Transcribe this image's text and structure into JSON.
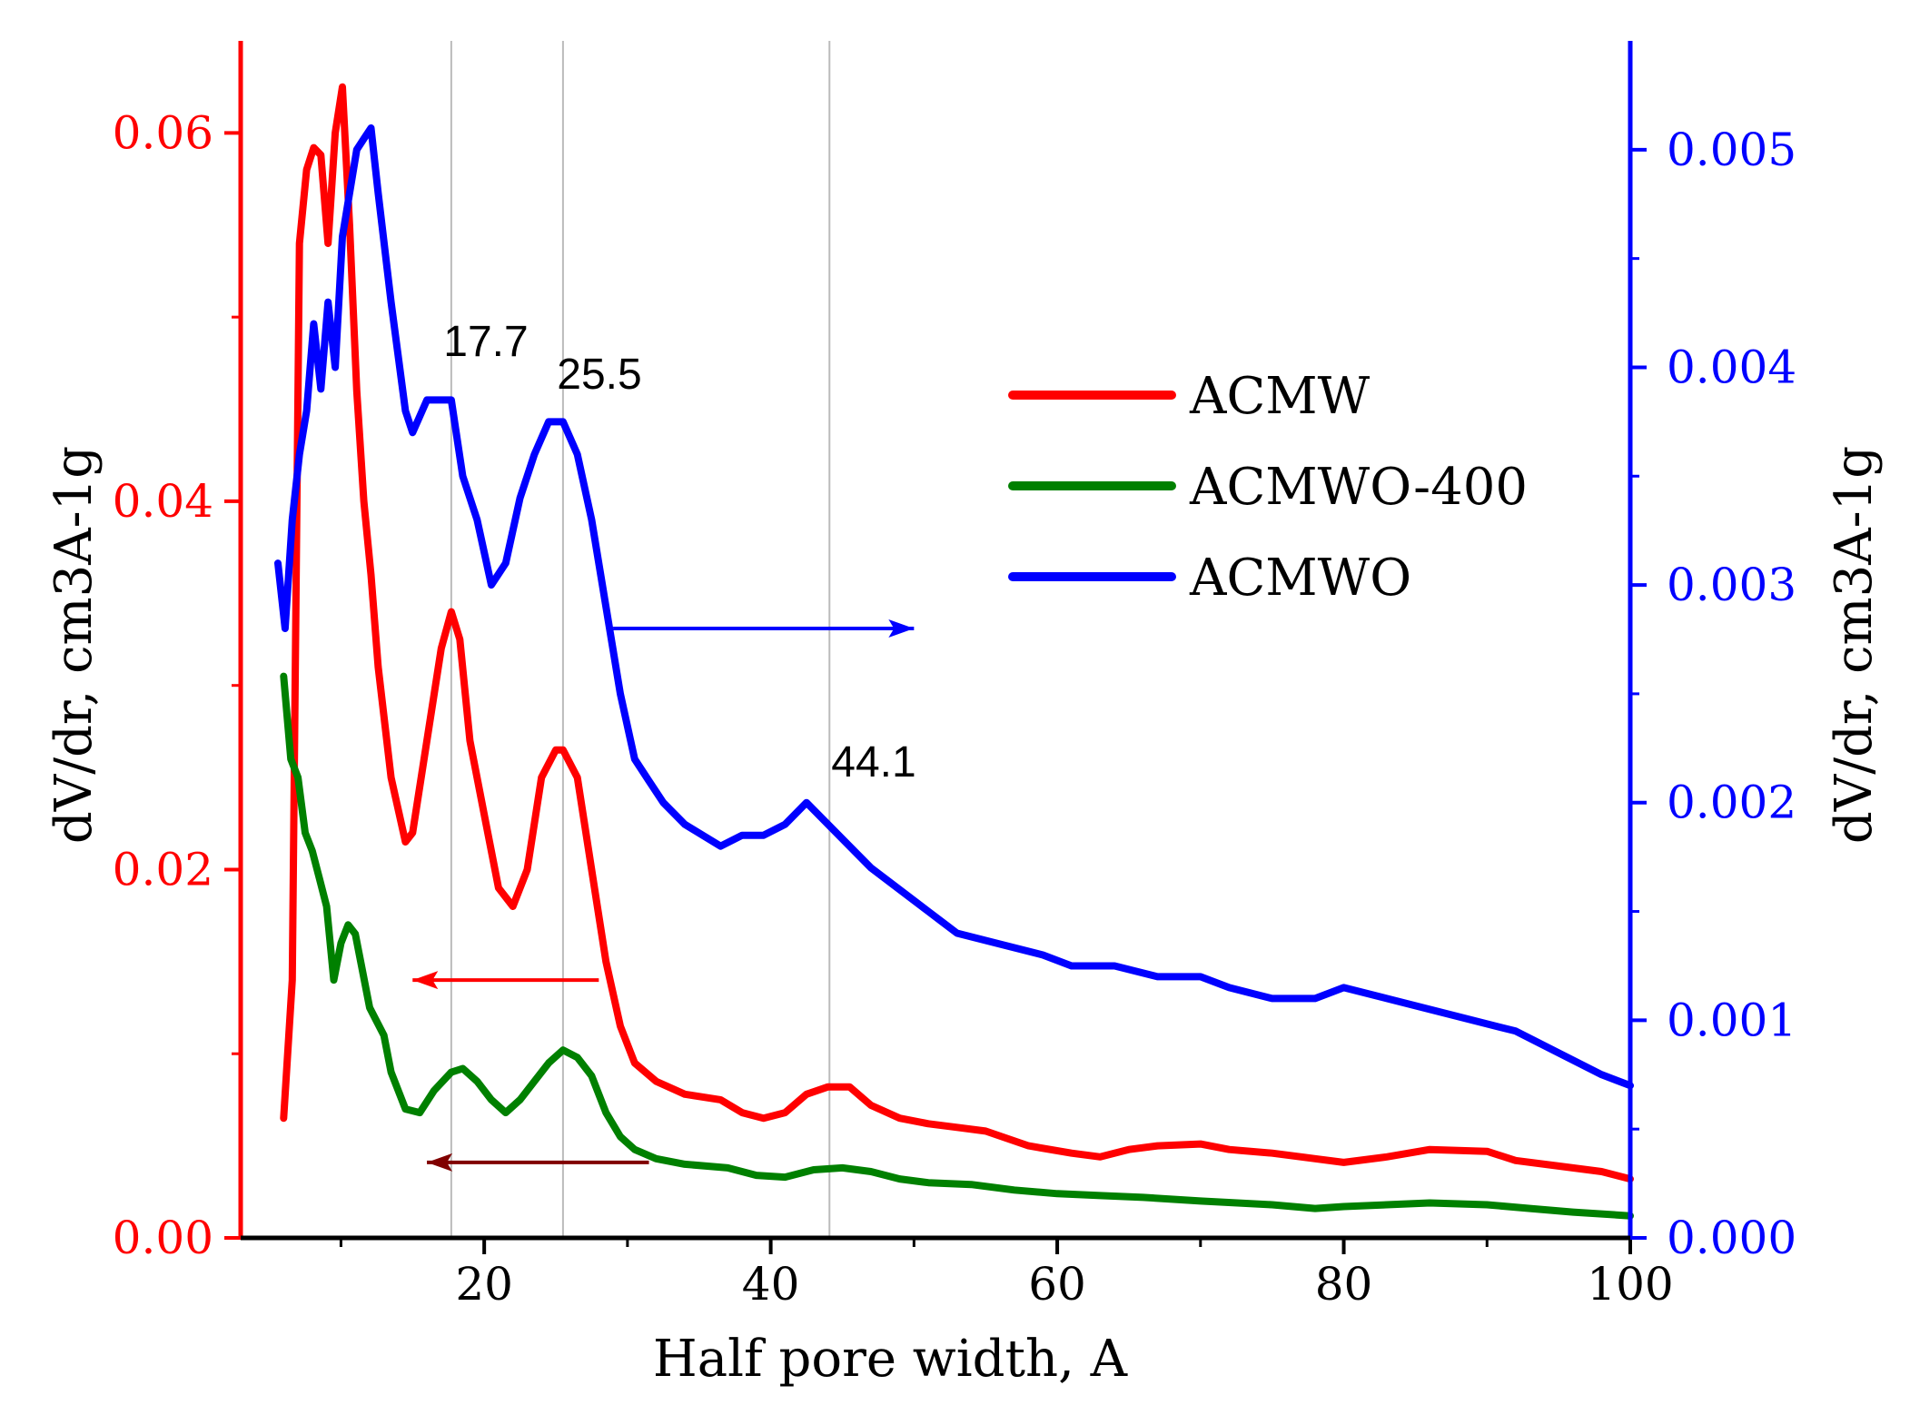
{
  "chart_data": {
    "type": "line",
    "title": "",
    "xlabel": "Half pore width, A",
    "ylabel_left": "dV/dr, cm3A-1g",
    "ylabel_right": "dV/dr, cm3A-1g",
    "xlim": [
      3,
      100
    ],
    "ylim_left": [
      0,
      0.065
    ],
    "ylim_right": [
      0,
      0.0055
    ],
    "x_ticks": [
      "20",
      "40",
      "60",
      "80",
      "100"
    ],
    "y_left_ticks": [
      "0.00",
      "0.02",
      "0.04",
      "0.06"
    ],
    "y_right_ticks": [
      "0.000",
      "0.001",
      "0.002",
      "0.003",
      "0.004",
      "0.005"
    ],
    "vertical_lines": [
      17.7,
      25.5,
      44.1
    ],
    "annotations": [
      "17.7",
      "25.5",
      "44.1"
    ],
    "legend": [
      "ACMW",
      "ACMWO-400",
      "ACMWO"
    ],
    "legend_position": "top-right",
    "colors": {
      "ACMW": "#ff0000",
      "ACMWO-400": "#008000",
      "ACMWO": "#0000ff",
      "left_axis": "#ff0000",
      "right_axis": "#0000ff",
      "arrow_dark": "#800000"
    },
    "series": [
      {
        "name": "ACMW",
        "axis": "left",
        "x": [
          6.0,
          6.6,
          7.1,
          7.6,
          8.1,
          8.6,
          9.1,
          9.6,
          10.1,
          10.6,
          11.1,
          11.6,
          12.1,
          12.6,
          13.5,
          14.5,
          15.0,
          15.8,
          17.0,
          17.7,
          18.3,
          19.0,
          20.0,
          21.0,
          22.0,
          23.0,
          24.0,
          25.0,
          25.5,
          26.5,
          27.5,
          28.5,
          29.5,
          30.5,
          32.0,
          34.0,
          36.5,
          38.0,
          39.5,
          41.0,
          42.5,
          44.0,
          45.5,
          47.0,
          49.0,
          51.0,
          53.0,
          55.0,
          58.0,
          61.0,
          63.0,
          65.0,
          67.0,
          70.0,
          72.0,
          75.0,
          78.0,
          80.0,
          83.0,
          86.0,
          90.0,
          92.0,
          95.0,
          98.0,
          100.0
        ],
        "values": [
          0.0065,
          0.014,
          0.054,
          0.058,
          0.0592,
          0.0588,
          0.054,
          0.06,
          0.0625,
          0.055,
          0.046,
          0.04,
          0.036,
          0.031,
          0.025,
          0.0215,
          0.022,
          0.026,
          0.032,
          0.034,
          0.0325,
          0.027,
          0.023,
          0.019,
          0.018,
          0.02,
          0.025,
          0.0265,
          0.0265,
          0.025,
          0.02,
          0.015,
          0.0115,
          0.0095,
          0.0085,
          0.0078,
          0.0075,
          0.0068,
          0.0065,
          0.0068,
          0.0078,
          0.0082,
          0.0082,
          0.0072,
          0.0065,
          0.0062,
          0.006,
          0.0058,
          0.005,
          0.0046,
          0.0044,
          0.0048,
          0.005,
          0.0051,
          0.0048,
          0.0046,
          0.0043,
          0.0041,
          0.0044,
          0.0048,
          0.0047,
          0.0042,
          0.0039,
          0.0036,
          0.0032
        ]
      },
      {
        "name": "ACMWO-400",
        "axis": "left",
        "x": [
          6.0,
          6.5,
          7.0,
          7.5,
          8.0,
          8.5,
          9.0,
          9.5,
          10.0,
          10.5,
          11.0,
          12.0,
          13.0,
          13.5,
          14.5,
          15.5,
          16.5,
          17.7,
          18.5,
          19.5,
          20.5,
          21.5,
          22.5,
          23.5,
          24.5,
          25.5,
          26.5,
          27.5,
          28.5,
          29.5,
          30.5,
          32.0,
          34.0,
          37.0,
          39.0,
          41.0,
          43.0,
          45.0,
          47.0,
          49.0,
          51.0,
          54.0,
          57.0,
          60.0,
          63.0,
          66.0,
          70.0,
          75.0,
          78.0,
          80.0,
          83.0,
          86.0,
          90.0,
          93.0,
          96.0,
          100.0
        ],
        "values": [
          0.0305,
          0.026,
          0.025,
          0.022,
          0.021,
          0.0195,
          0.018,
          0.014,
          0.016,
          0.017,
          0.0165,
          0.0125,
          0.011,
          0.009,
          0.007,
          0.0068,
          0.008,
          0.009,
          0.0092,
          0.0085,
          0.0075,
          0.0068,
          0.0075,
          0.0085,
          0.0095,
          0.0102,
          0.0098,
          0.0088,
          0.0068,
          0.0055,
          0.0048,
          0.0043,
          0.004,
          0.0038,
          0.0034,
          0.0033,
          0.0037,
          0.0038,
          0.0036,
          0.0032,
          0.003,
          0.0029,
          0.0026,
          0.0024,
          0.0023,
          0.0022,
          0.002,
          0.0018,
          0.0016,
          0.0017,
          0.0018,
          0.0019,
          0.0018,
          0.0016,
          0.0014,
          0.0012
        ]
      },
      {
        "name": "ACMWO",
        "axis": "right",
        "x": [
          5.6,
          6.1,
          6.6,
          7.1,
          7.6,
          8.1,
          8.6,
          9.1,
          9.6,
          10.1,
          10.6,
          11.1,
          11.6,
          12.1,
          12.6,
          13.5,
          14.5,
          15.0,
          16.0,
          17.0,
          17.7,
          18.5,
          19.5,
          20.5,
          21.5,
          22.5,
          23.5,
          24.5,
          25.5,
          26.5,
          27.5,
          28.5,
          29.5,
          30.5,
          31.5,
          32.5,
          34.0,
          36.5,
          38.0,
          39.5,
          41.0,
          42.5,
          44.0,
          45.5,
          47.0,
          49.0,
          51.0,
          53.0,
          56.0,
          59.0,
          61.0,
          64.0,
          67.0,
          70.0,
          72.0,
          75.0,
          78.0,
          80.0,
          83.0,
          86.0,
          89.0,
          92.0,
          95.0,
          98.0,
          100.0
        ],
        "values": [
          0.0031,
          0.0028,
          0.0033,
          0.0036,
          0.0038,
          0.0042,
          0.0039,
          0.0043,
          0.004,
          0.0046,
          0.0048,
          0.005,
          0.00505,
          0.0051,
          0.0048,
          0.0043,
          0.0038,
          0.0037,
          0.00385,
          0.00385,
          0.00385,
          0.0035,
          0.0033,
          0.003,
          0.0031,
          0.0034,
          0.0036,
          0.00375,
          0.00375,
          0.0036,
          0.0033,
          0.0029,
          0.0025,
          0.0022,
          0.0021,
          0.002,
          0.0019,
          0.0018,
          0.00185,
          0.00185,
          0.0019,
          0.002,
          0.0019,
          0.0018,
          0.0017,
          0.0016,
          0.0015,
          0.0014,
          0.00135,
          0.0013,
          0.00125,
          0.00125,
          0.0012,
          0.0012,
          0.00115,
          0.0011,
          0.0011,
          0.00115,
          0.0011,
          0.00105,
          0.001,
          0.00095,
          0.00085,
          0.00075,
          0.0007
        ]
      }
    ],
    "arrows": [
      {
        "series": "ACMWO",
        "direction": "right",
        "x_from": 29.0,
        "x_to": 50.0,
        "y": 0.0028,
        "axis": "right"
      },
      {
        "series": "ACMW",
        "direction": "left",
        "x_from": 28.0,
        "x_to": 15.0,
        "y": 0.014,
        "axis": "left"
      },
      {
        "series": "ACMWO-400",
        "direction": "left",
        "x_from": 31.5,
        "x_to": 16.0,
        "y": 0.0041,
        "axis": "left"
      }
    ]
  }
}
